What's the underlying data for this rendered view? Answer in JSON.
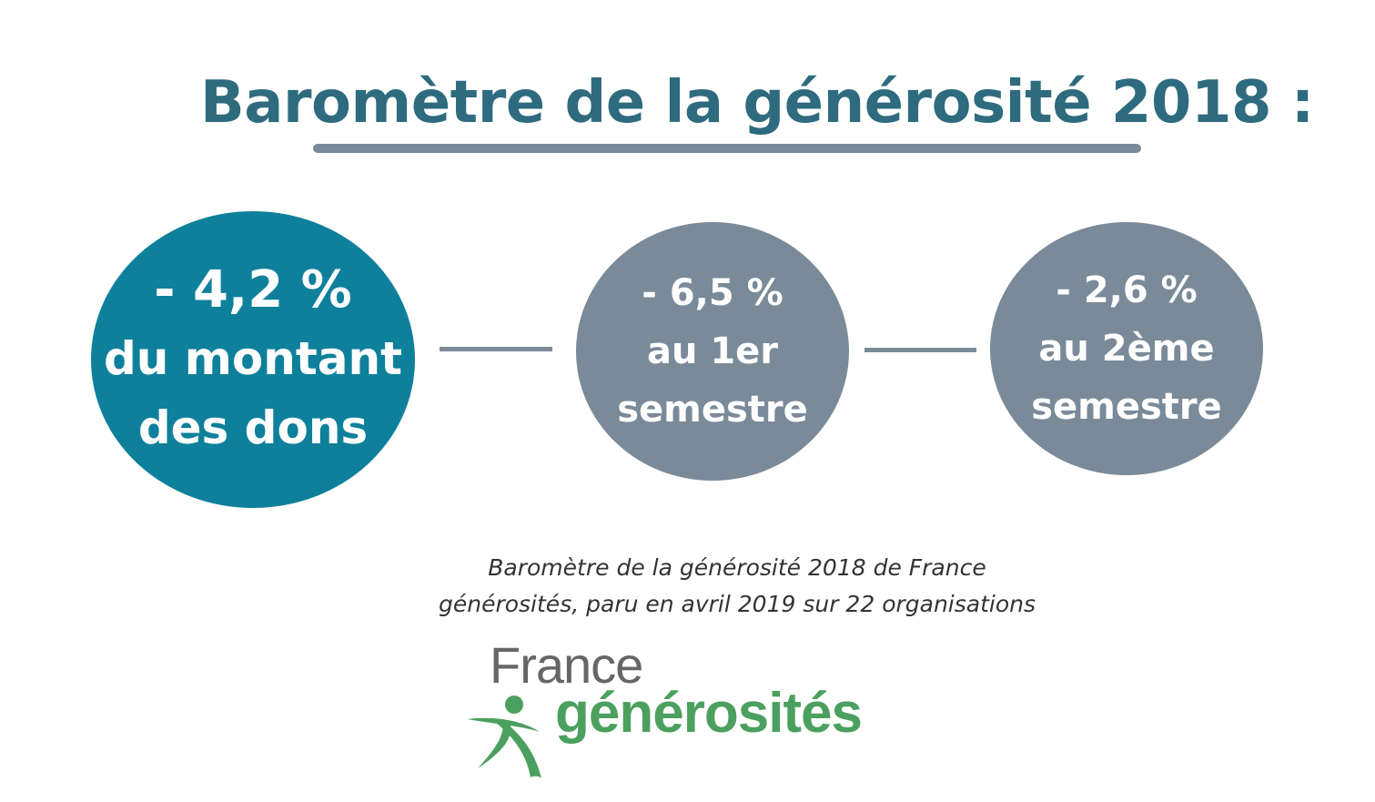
{
  "title": "Baromètre de la générosité 2018 :",
  "main_stat": {
    "value": "- 4,2 %",
    "line1": "du montant",
    "line2": "des dons"
  },
  "semester1": {
    "value": "- 6,5 %",
    "line1": "au 1er",
    "line2": "semestre"
  },
  "semester2": {
    "value": "- 2,6 %",
    "line1": "au 2ème",
    "line2": "semestre"
  },
  "source": {
    "line1": "Baromètre de la générosité 2018 de France",
    "line2": "générosités, paru en avril 2019 sur 22 organisations"
  },
  "logo": {
    "word1": "France",
    "word2": "générosités"
  },
  "colors": {
    "title": "#2e6b7e",
    "main_circle": "#0e809b",
    "grey": "#7a8a99",
    "logo_green": "#4ca05f"
  }
}
